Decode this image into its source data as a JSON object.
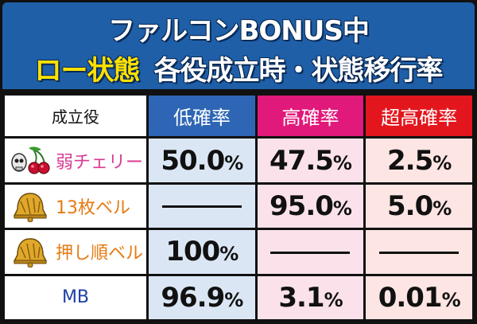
{
  "header": {
    "title_line1": "ファルコンBONUS中",
    "title_line2_highlight": "ロー状態",
    "title_line2_rest": "各役成立時・状態移行率"
  },
  "table": {
    "columns": [
      "成立役",
      "低確率",
      "高確率",
      "超高確率"
    ],
    "rows": [
      {
        "label": "弱チェリー",
        "icon": "cherry-skull-icon",
        "low": "50.0",
        "low_unit": "%",
        "high": "47.5",
        "high_unit": "%",
        "super": "2.5",
        "super_unit": "%"
      },
      {
        "label": "13枚ベル",
        "icon": "bell-icon",
        "low": "――",
        "high": "95.0",
        "high_unit": "%",
        "super": "5.0",
        "super_unit": "%"
      },
      {
        "label": "押し順ベル",
        "icon": "bell-icon",
        "low": "100",
        "low_unit": "%",
        "high": "――",
        "super": "――"
      },
      {
        "label": "MB",
        "icon": "",
        "low": "96.9",
        "low_unit": "%",
        "high": "3.1",
        "high_unit": "%",
        "super": "0.01",
        "super_unit": "%"
      }
    ]
  },
  "colors": {
    "header_bg": "#1f5fa8",
    "low_header": "#2e66b5",
    "high_header": "#e0197a",
    "super_header": "#e3161e",
    "highlight_text": "#ffe100"
  }
}
